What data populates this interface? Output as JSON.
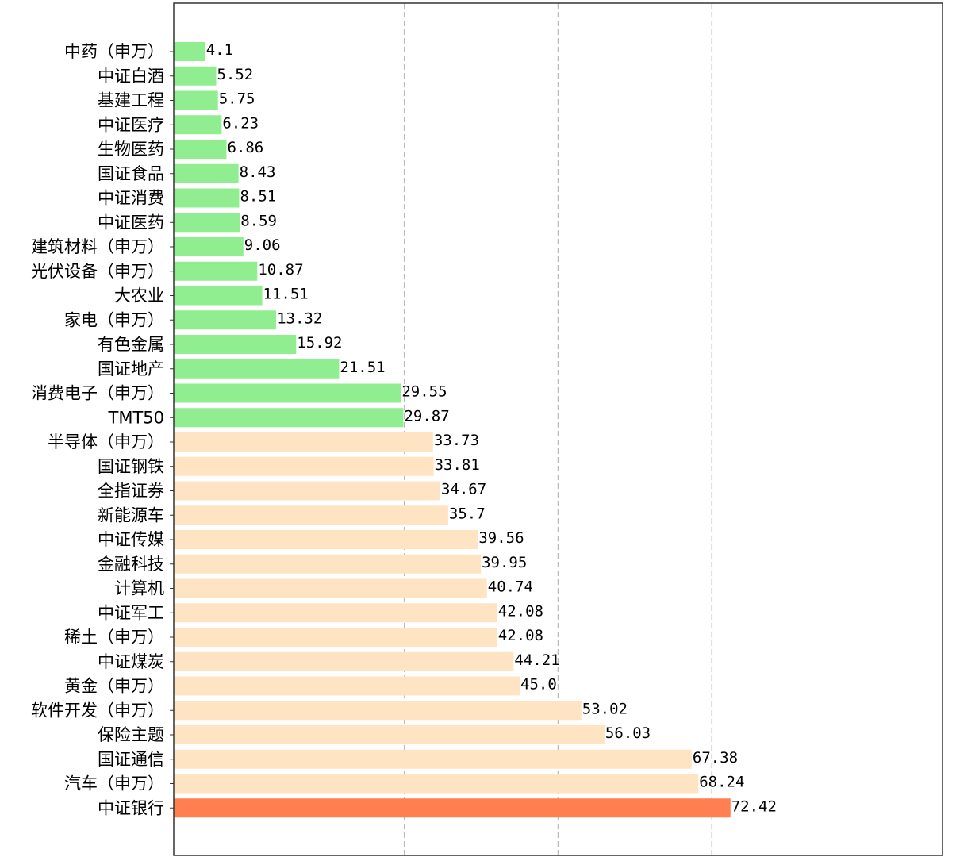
{
  "chart_data": {
    "type": "bar",
    "orientation": "horizontal",
    "categories": [
      "中药（申万）",
      "中证白酒",
      "基建工程",
      "中证医疗",
      "生物医药",
      "国证食品",
      "中证消费",
      "中证医药",
      "建筑材料（申万）",
      "光伏设备（申万）",
      "大农业",
      "家电（申万）",
      "有色金属",
      "国证地产",
      "消费电子（申万）",
      "TMT50",
      "半导体（申万）",
      "国证钢铁",
      "全指证券",
      "新能源车",
      "中证传媒",
      "金融科技",
      "计算机",
      "中证军工",
      "稀土（申万）",
      "中证煤炭",
      "黄金（申万）",
      "软件开发（申万）",
      "保险主题",
      "国证通信",
      "汽车（申万）",
      "中证银行"
    ],
    "values": [
      4.1,
      5.52,
      5.75,
      6.23,
      6.86,
      8.43,
      8.51,
      8.59,
      9.06,
      10.87,
      11.51,
      13.32,
      15.92,
      21.51,
      29.55,
      29.87,
      33.73,
      33.81,
      34.67,
      35.7,
      39.56,
      39.95,
      40.74,
      42.08,
      42.08,
      44.21,
      45.0,
      53.02,
      56.03,
      67.38,
      68.24,
      72.42
    ],
    "value_labels": [
      "4.1",
      "5.52",
      "5.75",
      "6.23",
      "6.86",
      "8.43",
      "8.51",
      "8.59",
      "9.06",
      "10.87",
      "11.51",
      "13.32",
      "15.92",
      "21.51",
      "29.55",
      "29.87",
      "33.73",
      "33.81",
      "34.67",
      "35.7",
      "39.56",
      "39.95",
      "40.74",
      "42.08",
      "42.08",
      "44.21",
      "45.0",
      "53.02",
      "56.03",
      "67.38",
      "68.24",
      "72.42"
    ],
    "bar_colors": [
      "#90ee90",
      "#90ee90",
      "#90ee90",
      "#90ee90",
      "#90ee90",
      "#90ee90",
      "#90ee90",
      "#90ee90",
      "#90ee90",
      "#90ee90",
      "#90ee90",
      "#90ee90",
      "#90ee90",
      "#90ee90",
      "#90ee90",
      "#90ee90",
      "#ffe4c4",
      "#ffe4c4",
      "#ffe4c4",
      "#ffe4c4",
      "#ffe4c4",
      "#ffe4c4",
      "#ffe4c4",
      "#ffe4c4",
      "#ffe4c4",
      "#ffe4c4",
      "#ffe4c4",
      "#ffe4c4",
      "#ffe4c4",
      "#ffe4c4",
      "#ffe4c4",
      "#ff7f50"
    ],
    "xlim": [
      0,
      100
    ],
    "vertical_reference_lines": [
      30,
      50,
      70
    ],
    "grid": false,
    "title": "",
    "xlabel": "",
    "ylabel": ""
  }
}
